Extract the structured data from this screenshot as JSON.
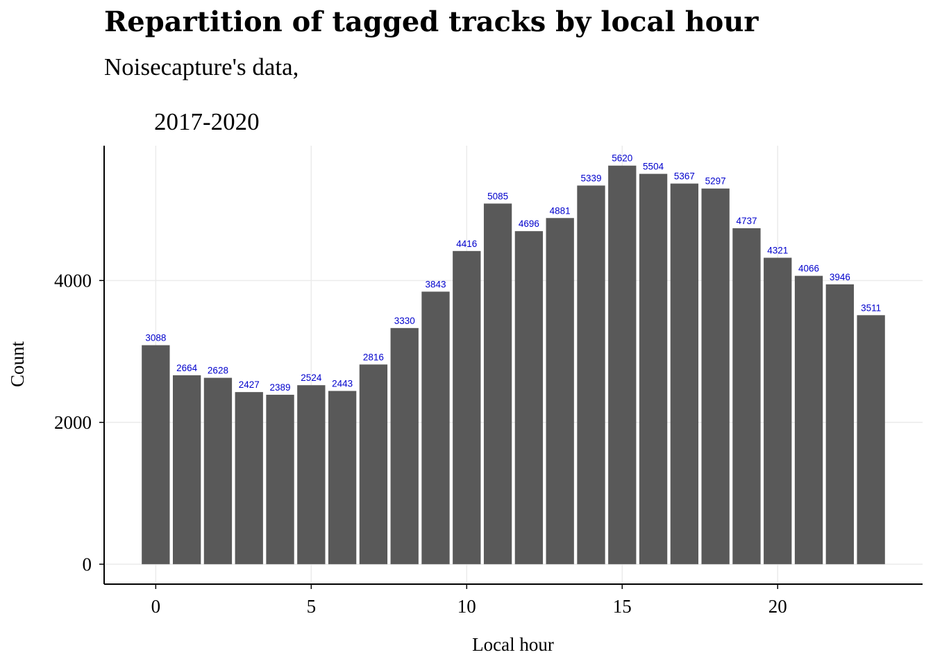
{
  "chart_data": {
    "type": "bar",
    "title": "Repartition of tagged tracks by local hour",
    "subtitle_lines": [
      "Noisecapture's data,",
      "2017-2020"
    ],
    "xlabel": "Local hour",
    "ylabel": "Count",
    "x": [
      0,
      1,
      2,
      3,
      4,
      5,
      6,
      7,
      8,
      9,
      10,
      11,
      12,
      13,
      14,
      15,
      16,
      17,
      18,
      19,
      20,
      21,
      22,
      23
    ],
    "values": [
      3088,
      2664,
      2628,
      2427,
      2389,
      2524,
      2443,
      2816,
      3330,
      3843,
      4416,
      5085,
      4696,
      4881,
      5339,
      5620,
      5504,
      5367,
      5297,
      4737,
      4321,
      4066,
      3946,
      3511
    ],
    "x_ticks": [
      0,
      5,
      10,
      15,
      20
    ],
    "y_ticks": [
      0,
      2000,
      4000
    ],
    "xlim": [
      -1.66,
      24.66
    ],
    "ylim": [
      -281,
      5901
    ],
    "grid": true,
    "colors": {
      "bar": "#595959",
      "bar_label": "#0000cc",
      "grid": "#ebebeb",
      "axis": "#000000"
    }
  }
}
